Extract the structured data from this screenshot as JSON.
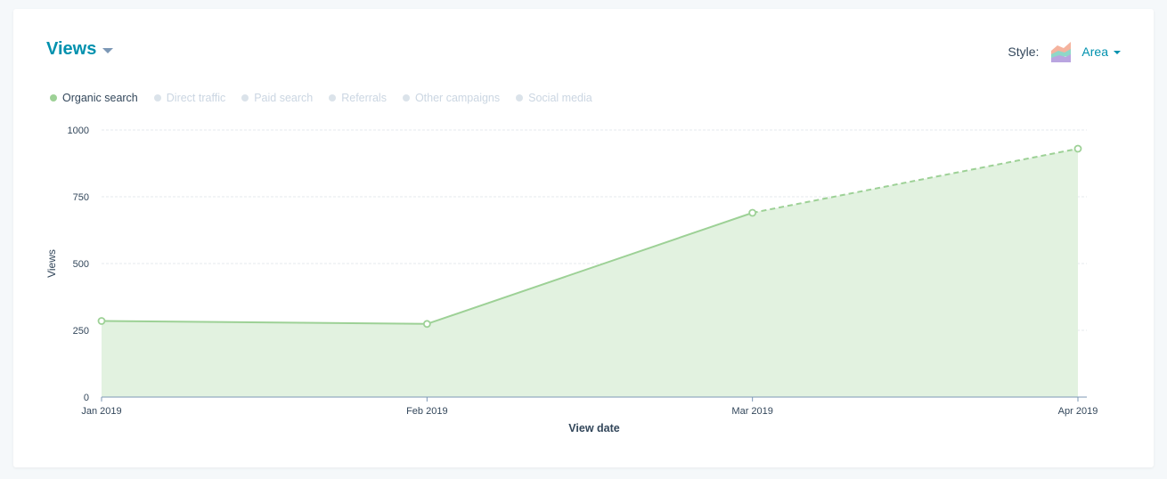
{
  "header": {
    "title": "Views",
    "style_label": "Style:",
    "style_value": "Area"
  },
  "legend": [
    {
      "label": "Organic search",
      "active": true,
      "color": "#9dd196"
    },
    {
      "label": "Direct traffic",
      "active": false
    },
    {
      "label": "Paid search",
      "active": false
    },
    {
      "label": "Referrals",
      "active": false
    },
    {
      "label": "Other campaigns",
      "active": false
    },
    {
      "label": "Social media",
      "active": false
    }
  ],
  "chart_data": {
    "type": "area",
    "categories": [
      "Jan 2019",
      "Feb 2019",
      "Mar 2019",
      "Apr 2019"
    ],
    "series": [
      {
        "name": "Organic search",
        "values": [
          285,
          274,
          690,
          930
        ],
        "projected_from_index": 2
      }
    ],
    "xlabel": "View date",
    "ylabel": "Views",
    "ylim": [
      0,
      1000
    ],
    "yticks": [
      0,
      250,
      500,
      750,
      1000
    ],
    "grid": true,
    "legend_placement": "top-left",
    "colors": {
      "line": "#9dd196",
      "fill": "#e2f2e0",
      "grid": "#e5e9ee",
      "axis": "#7c98b6"
    }
  }
}
